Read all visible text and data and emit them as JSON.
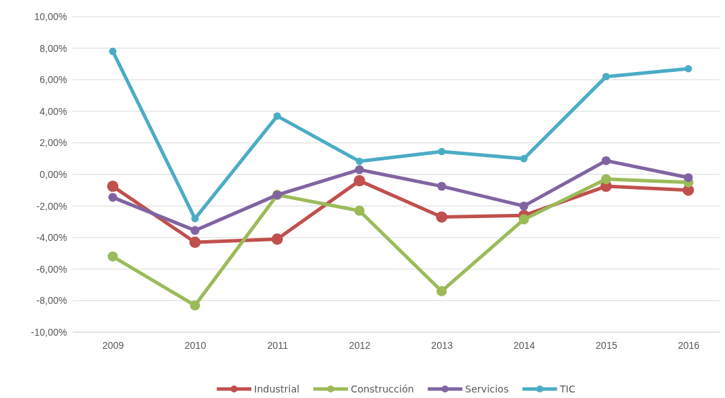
{
  "chart_data": {
    "type": "line",
    "categories": [
      "2009",
      "2010",
      "2011",
      "2012",
      "2013",
      "2014",
      "2015",
      "2016"
    ],
    "series": [
      {
        "name": "Industrial",
        "color": "#c0504d",
        "values": [
          -0.75,
          -4.3,
          -4.1,
          -0.4,
          -2.7,
          -2.6,
          -0.75,
          -1.0
        ]
      },
      {
        "name": "Construcción",
        "color": "#9bbb59",
        "values": [
          -5.2,
          -8.3,
          -1.3,
          -2.3,
          -7.4,
          -2.85,
          -0.3,
          -0.5
        ]
      },
      {
        "name": "Servicios",
        "color": "#8064a2",
        "values": [
          -1.45,
          -3.55,
          -1.3,
          0.3,
          -0.75,
          -2.0,
          0.87,
          -0.2
        ]
      },
      {
        "name": "TIC",
        "color": "#4bacc6",
        "values": [
          7.8,
          -2.8,
          3.7,
          0.83,
          1.45,
          1.0,
          6.2,
          6.7
        ]
      }
    ],
    "ylim": [
      -10,
      10
    ],
    "yticks": [
      {
        "value": -10,
        "label": "-10,00%"
      },
      {
        "value": -8,
        "label": "-8,00%"
      },
      {
        "value": -6,
        "label": "-6,00%"
      },
      {
        "value": -4,
        "label": "-4,00%"
      },
      {
        "value": -2,
        "label": "-2,00%"
      },
      {
        "value": 0,
        "label": "0,00%"
      },
      {
        "value": 2,
        "label": "2,00%"
      },
      {
        "value": 4,
        "label": "4,00%"
      },
      {
        "value": 6,
        "label": "6,00%"
      },
      {
        "value": 8,
        "label": "8,00%"
      },
      {
        "value": 10,
        "label": "10,00%"
      }
    ],
    "grid": "y",
    "legend": "bottom",
    "marker": "circle",
    "line_style": "solid"
  }
}
